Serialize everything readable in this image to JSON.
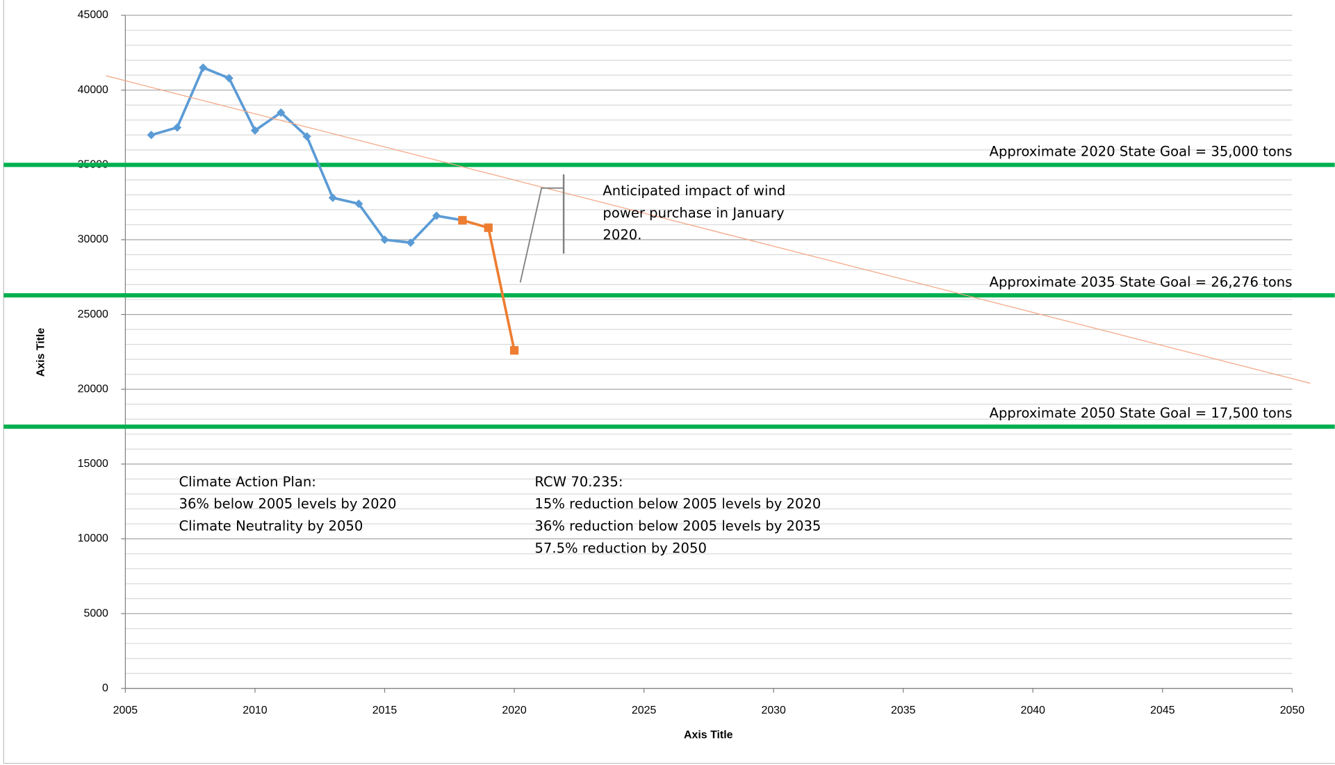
{
  "chart_data": {
    "type": "line",
    "x_label": "Axis Title",
    "y_label": "Axis Title",
    "xlim": [
      2005,
      2050
    ],
    "xticks": [
      2005,
      2010,
      2015,
      2020,
      2025,
      2030,
      2035,
      2040,
      2045,
      2050
    ],
    "ylim": [
      0,
      45000
    ],
    "yticks": [
      0,
      5000,
      10000,
      15000,
      20000,
      25000,
      30000,
      35000,
      40000,
      45000
    ],
    "y_minor_ticks": [
      1000,
      2000,
      3000,
      4000,
      6000,
      7000,
      8000,
      9000,
      11000,
      12000,
      13000,
      14000,
      16000,
      17000,
      18000,
      19000,
      21000,
      22000,
      23000,
      24000,
      26000,
      27000,
      28000,
      29000,
      31000,
      32000,
      33000,
      34000,
      36000,
      37000,
      38000,
      39000,
      41000,
      42000,
      43000,
      44000
    ],
    "grid": true,
    "series": [
      {
        "color": "#5b9bd5",
        "marker": "diamond",
        "x": [
          2006,
          2007,
          2008,
          2009,
          2010,
          2011,
          2012,
          2013,
          2014,
          2015,
          2016,
          2017,
          2018
        ],
        "values": [
          37000,
          37500,
          41500,
          40800,
          37300,
          38500,
          36900,
          32800,
          32400,
          30000,
          29800,
          31600,
          31300
        ]
      },
      {
        "color": "#ed7d31",
        "marker": "square",
        "x": [
          2018,
          2019,
          2020
        ],
        "values": [
          31300,
          30800,
          22600
        ]
      },
      {
        "color": "#f4a582",
        "marker": "none",
        "width": 1,
        "x": [
          2004.25,
          2050.7
        ],
        "values": [
          40960,
          20400
        ]
      }
    ],
    "reference_lines": [
      {
        "value": 35000,
        "label": "Approximate 2020 State Goal = 35,000 tons",
        "color": "#00b050"
      },
      {
        "value": 26276,
        "label": "Approximate 2035 State Goal = 26,276 tons",
        "color": "#00b050"
      },
      {
        "value": 17500,
        "label": "Approximate 2050 State Goal = 17,500 tons",
        "color": "#00b050"
      }
    ],
    "annotations": [
      {
        "lines": [
          "Anticipated impact of wind",
          "power purchase in January",
          "2020."
        ]
      },
      {
        "lines": [
          "Climate Action Plan:",
          "36% below 2005 levels by 2020",
          "Climate Neutrality by 2050"
        ]
      },
      {
        "lines": [
          "RCW 70.235:",
          "15% reduction below 2005 levels by 2020",
          "36% reduction below 2005 levels by 2035",
          "57.5% reduction by 2050"
        ]
      }
    ]
  }
}
